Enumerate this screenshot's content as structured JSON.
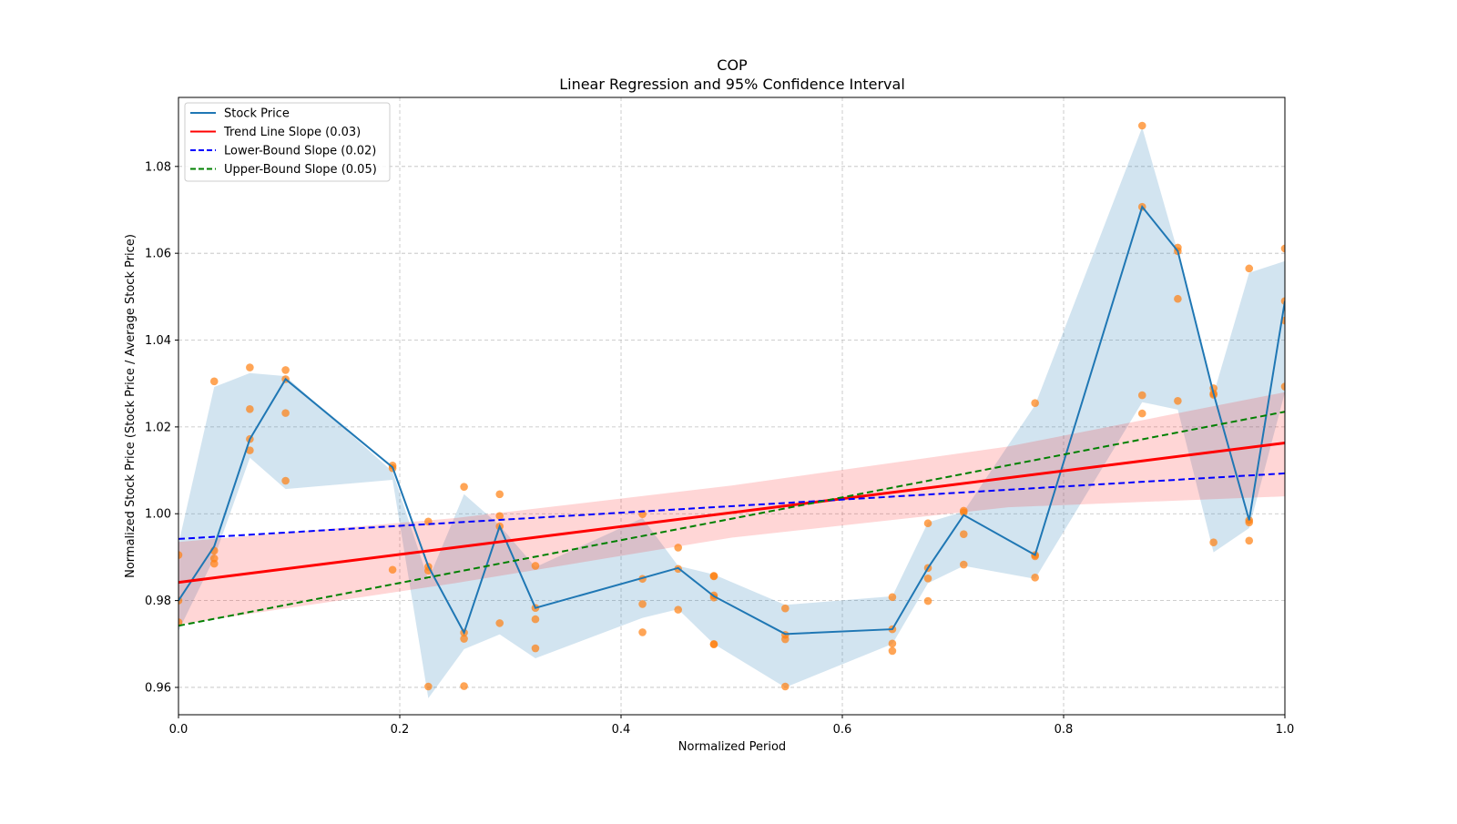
{
  "chart_data": {
    "type": "line",
    "title": "COP",
    "subtitle": "Linear Regression and 95% Confidence Interval",
    "xlabel": "Normalized Period",
    "ylabel": "Normalized Stock Price (Stock Price / Average Stock Price)",
    "xlim": [
      0.0,
      1.0
    ],
    "ylim": [
      0.9537,
      1.0959
    ],
    "xticks": [
      "0.0",
      "0.2",
      "0.4",
      "0.6",
      "0.8",
      "1.0"
    ],
    "yticks": [
      "0.96",
      "0.98",
      "1.00",
      "1.02",
      "1.04",
      "1.06",
      "1.08"
    ],
    "grid": true,
    "legend_position": "top-left",
    "legend": [
      {
        "label": "Stock Price",
        "color": "#1f77b4",
        "style": "solid"
      },
      {
        "label": "Trend Line Slope (0.03)",
        "color": "#ff0000",
        "style": "solid"
      },
      {
        "label": "Lower-Bound Slope (0.02)",
        "color": "#0000ff",
        "style": "dashed"
      },
      {
        "label": "Upper-Bound Slope (0.05)",
        "color": "#008000",
        "style": "dashed"
      }
    ],
    "x": [
      0,
      0.0323,
      0.0645,
      0.0968,
      0.1935,
      0.2258,
      0.2581,
      0.2903,
      0.3226,
      0.4194,
      0.4516,
      0.4839,
      0.5484,
      0.6452,
      0.6774,
      0.7097,
      0.7742,
      0.871,
      0.9032,
      0.9355,
      0.9677,
      1.0
    ],
    "stock_price": [
      0.98,
      0.9925,
      1.0172,
      1.031,
      1.0107,
      0.9879,
      0.9726,
      0.9971,
      0.9783,
      0.9852,
      0.9875,
      0.981,
      0.9723,
      0.9734,
      0.9875,
      0.9997,
      0.9905,
      1.0707,
      1.0605,
      1.0277,
      0.9985,
      1.049
    ],
    "band_upper": [
      0.993,
      1.0292,
      1.0324,
      1.0317,
      1.0097,
      0.9848,
      1.0045,
      0.9973,
      0.9877,
      0.999,
      0.988,
      0.986,
      0.979,
      0.981,
      0.998,
      1.0005,
      1.025,
      1.089,
      1.0603,
      1.0275,
      1.0555,
      1.0582
    ],
    "band_lower": [
      0.973,
      0.9898,
      1.0129,
      1.0057,
      1.0078,
      0.9575,
      0.9688,
      0.9722,
      0.9667,
      0.976,
      0.978,
      0.97,
      0.96,
      0.97,
      0.984,
      0.988,
      0.985,
      1.0257,
      1.024,
      0.9911,
      0.9967,
      1.028
    ],
    "scatter": [
      [
        0.9905,
        0.98,
        0.975
      ],
      [
        1.0305,
        0.9915,
        0.9897,
        0.9885
      ],
      [
        1.0337,
        1.0241,
        1.0172,
        1.0146
      ],
      [
        1.0331,
        1.031,
        1.0232,
        1.0076
      ],
      [
        1.0111,
        1.0105,
        0.9871
      ],
      [
        0.9982,
        0.9878,
        0.9869,
        0.9602
      ],
      [
        1.0062,
        0.9726,
        0.9712,
        0.9603
      ],
      [
        1.0045,
        0.9995,
        0.9971,
        0.9748
      ],
      [
        0.988,
        0.9783,
        0.9757,
        0.969
      ],
      [
        0.9999,
        0.985,
        0.9792,
        0.9727
      ],
      [
        0.9922,
        0.9873,
        0.9779
      ],
      [
        0.9857,
        0.9856,
        0.9812,
        0.9807,
        0.97,
        0.9699
      ],
      [
        0.9782,
        0.9721,
        0.9711,
        0.9602
      ],
      [
        0.9808,
        0.9734,
        0.9701,
        0.9684
      ],
      [
        0.9978,
        0.9875,
        0.9851,
        0.9799
      ],
      [
        1.0007,
        1.0003,
        0.9953,
        0.9883
      ],
      [
        1.0255,
        0.9905,
        0.9902,
        0.9853
      ],
      [
        1.0894,
        1.0707,
        1.0273,
        1.0231
      ],
      [
        1.0613,
        1.0605,
        1.0495,
        1.026
      ],
      [
        1.0289,
        1.0277,
        1.0274,
        0.9934
      ],
      [
        1.0565,
        0.9985,
        0.998,
        0.9938
      ],
      [
        1.0611,
        1.049,
        1.0445,
        1.0293
      ]
    ],
    "trend_line": {
      "x": [
        0,
        1
      ],
      "y": [
        0.9842,
        1.0163
      ]
    },
    "lower_bound_line": {
      "x": [
        0,
        1
      ],
      "y": [
        0.9942,
        1.0093
      ]
    },
    "upper_bound_line": {
      "x": [
        0,
        1
      ],
      "y": [
        0.9742,
        1.0235
      ]
    },
    "confidence_interval": {
      "x": [
        0,
        0.25,
        0.5,
        0.75,
        1.0
      ],
      "upper": [
        0.9935,
        0.999,
        1.0065,
        1.0155,
        1.028
      ],
      "lower": [
        0.9745,
        0.984,
        0.9945,
        1.0015,
        1.004
      ]
    },
    "colors": {
      "band": "#1f77b4",
      "ci": "#ff0000",
      "points": "#ff7f0e",
      "grid": "#b0b0b0"
    }
  }
}
